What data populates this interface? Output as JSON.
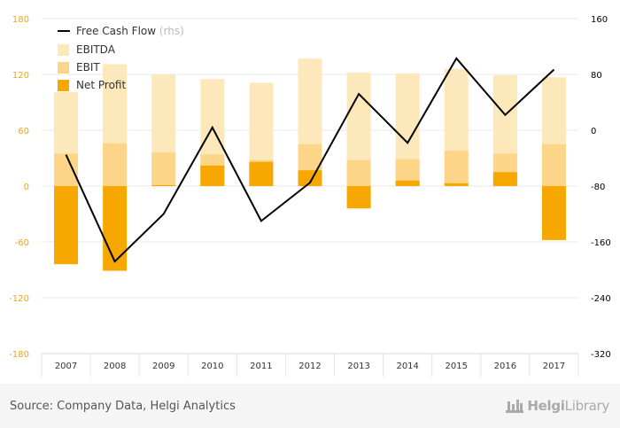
{
  "chart_data": {
    "type": "bar",
    "categories": [
      "2007",
      "2008",
      "2009",
      "2010",
      "2011",
      "2012",
      "2013",
      "2014",
      "2015",
      "2016",
      "2017"
    ],
    "series": [
      {
        "name": "EBITDA",
        "kind": "bar",
        "axis": "left",
        "color": "#fde8bb",
        "values": [
          101,
          131,
          120,
          115,
          111,
          137,
          122,
          121,
          126,
          119,
          117
        ]
      },
      {
        "name": "EBIT",
        "kind": "bar",
        "axis": "left",
        "color": "#fdd589",
        "values": [
          35,
          46,
          36,
          34,
          28,
          45,
          28,
          29,
          38,
          35,
          45
        ]
      },
      {
        "name": "Net Profit",
        "kind": "bar",
        "axis": "left",
        "color": "#f6a800",
        "values": [
          -84,
          -91,
          1,
          22,
          26,
          17,
          -24,
          6,
          3,
          15,
          -58
        ]
      },
      {
        "name": "Free Cash Flow",
        "label_suffix": "(rhs)",
        "kind": "line",
        "axis": "right",
        "color": "#000000",
        "values": [
          -35,
          -188,
          -120,
          4,
          -130,
          -75,
          52,
          -18,
          103,
          22,
          87
        ]
      }
    ],
    "y_left": {
      "min": -180,
      "max": 180,
      "ticks": [
        "180",
        "120",
        "60",
        "0",
        "-60",
        "-120",
        "-180"
      ],
      "tick_values": [
        180,
        120,
        60,
        0,
        -60,
        -120,
        -180
      ],
      "tick_color": "#f6a800"
    },
    "y_right": {
      "min": -320,
      "max": 160,
      "ticks": [
        "160",
        "80",
        "0",
        "-80",
        "-160",
        "-240",
        "-320"
      ],
      "tick_values": [
        160,
        80,
        0,
        -80,
        -160,
        -240,
        -320
      ],
      "tick_color": "#000000"
    },
    "grid": true,
    "legend_position": "top-left",
    "xlabel": "",
    "ylabel": ""
  },
  "footer": {
    "source": "Source: Company Data, Helgi Analytics",
    "brand_bold": "Helgi",
    "brand_light": "Library"
  }
}
